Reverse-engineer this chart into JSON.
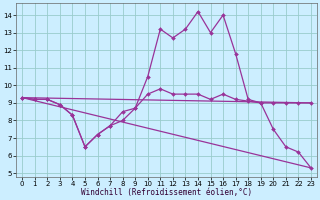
{
  "title": "",
  "xlabel": "Windchill (Refroidissement éolien,°C)",
  "background_color": "#cceeff",
  "grid_color": "#99cccc",
  "line_color": "#993399",
  "xlim": [
    -0.5,
    23.5
  ],
  "ylim": [
    4.8,
    14.7
  ],
  "yticks": [
    5,
    6,
    7,
    8,
    9,
    10,
    11,
    12,
    13,
    14
  ],
  "xticks": [
    0,
    1,
    2,
    3,
    4,
    5,
    6,
    7,
    8,
    9,
    10,
    11,
    12,
    13,
    14,
    15,
    16,
    17,
    18,
    19,
    20,
    21,
    22,
    23
  ],
  "series": [
    {
      "x": [
        0,
        1,
        2,
        3,
        4,
        5,
        6,
        7,
        8,
        9,
        10,
        11,
        12,
        13,
        14,
        15,
        16,
        17,
        18,
        19,
        20,
        21,
        22,
        23
      ],
      "y": [
        9.3,
        9.2,
        9.2,
        8.9,
        8.3,
        6.5,
        7.2,
        7.7,
        8.5,
        8.7,
        10.5,
        13.2,
        12.7,
        13.2,
        14.2,
        13.0,
        14.0,
        11.8,
        9.2,
        9.0,
        7.5,
        6.5,
        6.2,
        5.3
      ]
    },
    {
      "x": [
        0,
        1,
        2,
        3,
        4,
        5,
        6,
        7,
        8,
        9,
        10,
        11,
        12,
        13,
        14,
        15,
        16,
        17,
        18,
        19,
        20,
        21,
        22,
        23
      ],
      "y": [
        9.3,
        9.2,
        9.2,
        8.9,
        8.3,
        6.5,
        7.2,
        7.7,
        8.0,
        8.7,
        9.5,
        9.8,
        9.5,
        9.5,
        9.5,
        9.2,
        9.5,
        9.2,
        9.1,
        9.0,
        9.0,
        9.0,
        9.0,
        9.0
      ]
    },
    {
      "x": [
        0,
        23
      ],
      "y": [
        9.3,
        9.0
      ]
    },
    {
      "x": [
        0,
        23
      ],
      "y": [
        9.3,
        5.3
      ]
    }
  ],
  "xlabel_color": "#330033",
  "xlabel_fontsize": 5.5,
  "tick_labelsize": 5,
  "linewidth": 0.9,
  "markersize": 2.0
}
